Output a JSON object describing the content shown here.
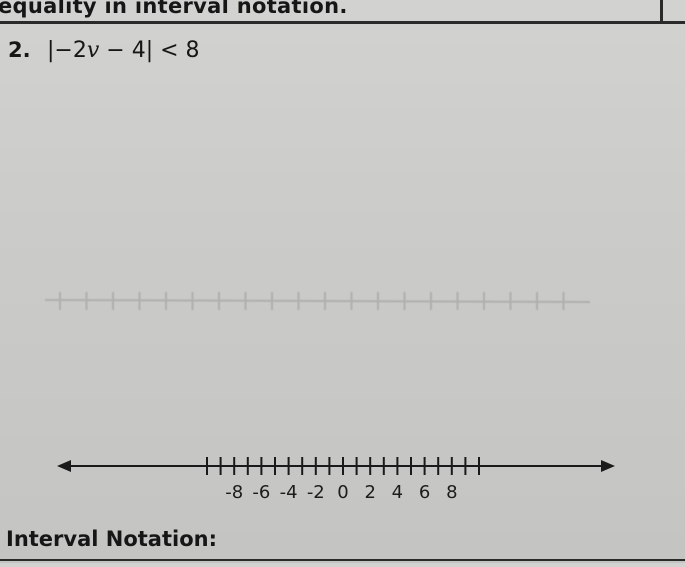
{
  "header": {
    "instructions": "equality in interval notation."
  },
  "problem": {
    "number": "2.",
    "expression": {
      "bar_open": "|",
      "inner_a": "−2",
      "variable": "v",
      "inner_b": " − 4",
      "bar_close": "|",
      "relation": " < 8"
    }
  },
  "number_line": {
    "min_tick": -10,
    "max_tick": 10,
    "labels": [
      "-8",
      "-6",
      "-4",
      "-2",
      "0",
      "2",
      "4",
      "6",
      "8"
    ],
    "label_values": [
      -8,
      -6,
      -4,
      -2,
      0,
      2,
      4,
      6,
      8
    ]
  },
  "footer": {
    "interval_label": "Interval Notation:"
  }
}
